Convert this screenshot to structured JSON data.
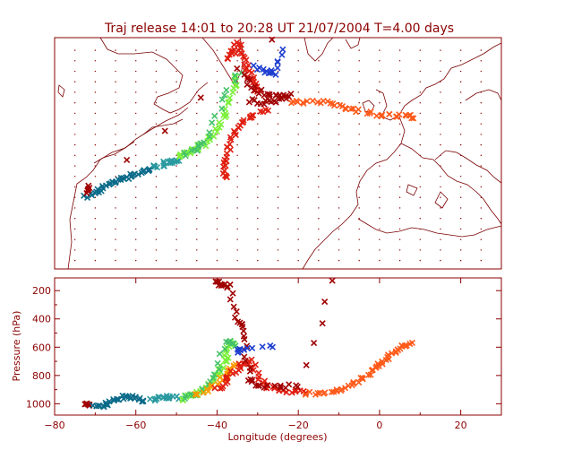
{
  "title": "Traj release 14:01 to 20:28 UT 21/07/2004    T=4.00 days",
  "colors": {
    "axis": "#8b0000",
    "marker_scale": [
      "#0b6b8a",
      "#2a9aa0",
      "#44c26a",
      "#7cf03a",
      "#ff9a00",
      "#ff5a1a",
      "#e01e10",
      "#a00000",
      "#1f3fd0"
    ]
  },
  "chart_data": [
    {
      "type": "scatter",
      "panel": "map",
      "grid": "dotted",
      "xlim": [
        -80,
        30
      ],
      "ylim": [
        20,
        75
      ],
      "description_series": [
        {
          "color_key": 0,
          "points": [
            [
              -72,
              37
            ],
            [
              -70,
              38.2
            ],
            [
              -68,
              39.5
            ],
            [
              -66,
              40.5
            ],
            [
              -64,
              41.3
            ],
            [
              -62,
              42
            ],
            [
              -60,
              42.6
            ],
            [
              -58,
              43.3
            ],
            [
              -56,
              44
            ]
          ]
        },
        {
          "color_key": 1,
          "points": [
            [
              -55,
              44.3
            ],
            [
              -53,
              45
            ],
            [
              -51,
              45.6
            ],
            [
              -50,
              46
            ]
          ]
        },
        {
          "color_key": 3,
          "points": [
            [
              -49,
              46.5
            ],
            [
              -47,
              47.3
            ],
            [
              -45,
              48.5
            ],
            [
              -43,
              50
            ],
            [
              -41,
              52
            ],
            [
              -39,
              55
            ],
            [
              -38,
              58
            ],
            [
              -36,
              63
            ],
            [
              -35,
              66
            ]
          ]
        },
        {
          "color_key": 2,
          "points": [
            [
              -48,
              47
            ],
            [
              -45,
              49
            ],
            [
              -42,
              51
            ],
            [
              -39,
              60
            ],
            [
              -34,
              67
            ]
          ]
        },
        {
          "color_key": 6,
          "points": [
            [
              -37,
              70
            ],
            [
              -36,
              72
            ],
            [
              -35,
              73.5
            ],
            [
              -34,
              71
            ],
            [
              -33,
              68
            ],
            [
              -32,
              66
            ],
            [
              -31,
              64
            ],
            [
              -30,
              62
            ]
          ]
        },
        {
          "color_key": 7,
          "points": [
            [
              -33,
              66
            ],
            [
              -31,
              63
            ],
            [
              -28,
              61.5
            ],
            [
              -25,
              61
            ],
            [
              -22,
              61.5
            ],
            [
              -26,
              60
            ],
            [
              -29,
              59.5
            ],
            [
              -32,
              60
            ]
          ]
        },
        {
          "color_key": 5,
          "points": [
            [
              -22,
              60
            ],
            [
              -18,
              59.8
            ],
            [
              -14,
              59.5
            ],
            [
              -10,
              59
            ],
            [
              -6,
              58
            ],
            [
              -2,
              57
            ],
            [
              2,
              56.5
            ],
            [
              6,
              56.3
            ],
            [
              8,
              56
            ]
          ]
        },
        {
          "color_key": 6,
          "points": [
            [
              -28,
              58
            ],
            [
              -31,
              56.5
            ],
            [
              -33.5,
              55
            ],
            [
              -35.5,
              53
            ],
            [
              -37,
              50
            ],
            [
              -37.5,
              47
            ],
            [
              -37.8,
              44
            ],
            [
              -38,
              41.5
            ]
          ]
        },
        {
          "color_key": 8,
          "points": [
            [
              -31,
              68
            ],
            [
              -28,
              67
            ],
            [
              -26,
              66.5
            ],
            [
              -24,
              72
            ]
          ]
        },
        {
          "color_key": 7,
          "points": [
            [
              -72,
              39.5
            ],
            [
              -72,
              38.5
            ],
            [
              -26,
              74.8
            ]
          ]
        }
      ]
    },
    {
      "type": "scatter",
      "panel": "profile",
      "xlabel": "Longitude  (degrees)",
      "ylabel": "Pressure  (hPa)",
      "xlim": [
        -80,
        30
      ],
      "ylim": [
        1080,
        110
      ],
      "xticks": [
        -80,
        -60,
        -40,
        -20,
        0,
        20
      ],
      "yticks": [
        200,
        400,
        600,
        800,
        1000
      ],
      "description_series": [
        {
          "color_key": 7,
          "points": [
            [
              -72,
              1000
            ],
            [
              -71.5,
              1010
            ]
          ]
        },
        {
          "color_key": 0,
          "points": [
            [
              -70,
              1015
            ],
            [
              -68,
              1010
            ],
            [
              -66,
              990
            ],
            [
              -64,
              960
            ],
            [
              -62,
              950
            ],
            [
              -60,
              965
            ],
            [
              -58,
              975
            ]
          ]
        },
        {
          "color_key": 1,
          "points": [
            [
              -56,
              970
            ],
            [
              -54,
              960
            ],
            [
              -52,
              955
            ],
            [
              -50,
              960
            ]
          ]
        },
        {
          "color_key": 3,
          "points": [
            [
              -49,
              970
            ],
            [
              -47,
              950
            ],
            [
              -45,
              930
            ],
            [
              -43,
              890
            ],
            [
              -41,
              820
            ],
            [
              -39,
              760
            ],
            [
              -38,
              680
            ],
            [
              -37,
              610
            ],
            [
              -36,
              560
            ]
          ]
        },
        {
          "color_key": 2,
          "points": [
            [
              -48,
              960
            ],
            [
              -44,
              920
            ],
            [
              -40,
              800
            ],
            [
              -38,
              560
            ],
            [
              -35,
              590
            ]
          ]
        },
        {
          "color_key": 4,
          "points": [
            [
              -46,
              940
            ],
            [
              -42,
              900
            ],
            [
              -39,
              830
            ],
            [
              -37,
              770
            ],
            [
              -35,
              720
            ]
          ]
        },
        {
          "color_key": 6,
          "points": [
            [
              -40,
              900
            ],
            [
              -38,
              850
            ],
            [
              -36,
              780
            ],
            [
              -34,
              720
            ],
            [
              -32,
              700
            ],
            [
              -30,
              780
            ],
            [
              -28,
              880
            ],
            [
              -26,
              900
            ],
            [
              -22,
              910
            ],
            [
              -18,
              920
            ]
          ]
        },
        {
          "color_key": 7,
          "points": [
            [
              -40,
              140
            ],
            [
              -39,
              160
            ],
            [
              -37,
              170
            ],
            [
              -35,
              400
            ],
            [
              -34,
              450
            ],
            [
              -33,
              620
            ],
            [
              -32,
              820
            ],
            [
              -30,
              870
            ],
            [
              -25,
              880
            ],
            [
              -20,
              870
            ],
            [
              -11,
              130
            ]
          ]
        },
        {
          "color_key": 5,
          "points": [
            [
              -18,
              930
            ],
            [
              -14,
              920
            ],
            [
              -10,
              900
            ],
            [
              -7,
              880
            ],
            [
              -4,
              820
            ],
            [
              -2,
              760
            ],
            [
              0,
              720
            ],
            [
              2,
              670
            ],
            [
              4,
              630
            ],
            [
              6,
              590
            ],
            [
              8,
              570
            ]
          ]
        },
        {
          "color_key": 8,
          "points": [
            [
              -35,
              630
            ],
            [
              -34,
              620
            ],
            [
              -26,
              590
            ]
          ]
        }
      ]
    }
  ]
}
